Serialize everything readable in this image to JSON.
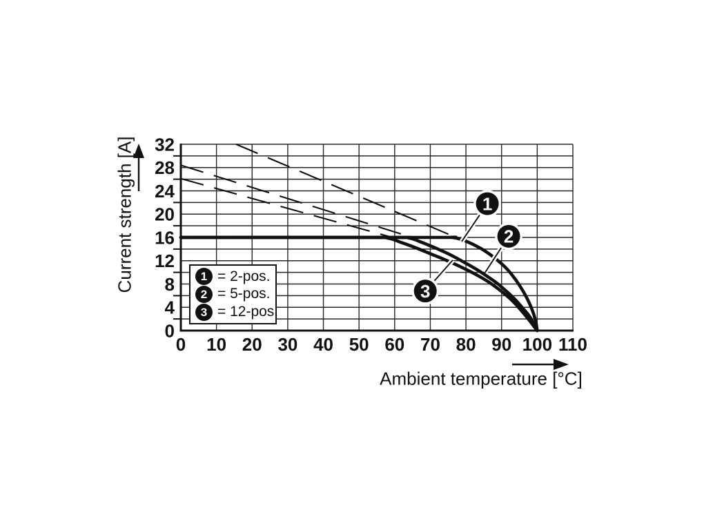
{
  "chart_data": {
    "type": "line",
    "xlabel": "Ambient temperature [°C]",
    "ylabel": "Current strength [A]",
    "xlim": [
      0,
      110
    ],
    "ylim": [
      0,
      32
    ],
    "x_ticks": [
      0,
      10,
      20,
      30,
      40,
      50,
      60,
      70,
      80,
      90,
      100,
      110
    ],
    "y_ticks": [
      0,
      4,
      8,
      12,
      16,
      20,
      24,
      28,
      32
    ],
    "x_grid_step": 10,
    "y_grid_step": 2,
    "grid": true,
    "legend_position": "inside-lower-left",
    "series": [
      {
        "id": "curve-2pos",
        "name": "1 = 2-pos.",
        "style": "solid",
        "points": [
          [
            0,
            16
          ],
          [
            70,
            16
          ],
          [
            76,
            16
          ],
          [
            79,
            15.6
          ],
          [
            82,
            14.8
          ],
          [
            85,
            13.8
          ],
          [
            88,
            12.5
          ],
          [
            91,
            10.9
          ],
          [
            93,
            9.5
          ],
          [
            95,
            7.8
          ],
          [
            97,
            5.7
          ],
          [
            98.5,
            3.7
          ],
          [
            99.5,
            1.8
          ],
          [
            100,
            0
          ]
        ]
      },
      {
        "id": "curve-5pos",
        "name": "2 = 5-pos.",
        "style": "solid",
        "points": [
          [
            0,
            16
          ],
          [
            58,
            16
          ],
          [
            64,
            15.9
          ],
          [
            67,
            15.3
          ],
          [
            71,
            14.3
          ],
          [
            75,
            13.2
          ],
          [
            79,
            11.9
          ],
          [
            83,
            10.5
          ],
          [
            86,
            9.3
          ],
          [
            89,
            8.0
          ],
          [
            92,
            6.4
          ],
          [
            94,
            5.2
          ],
          [
            96,
            3.8
          ],
          [
            98,
            2.3
          ],
          [
            100,
            0
          ]
        ]
      },
      {
        "id": "curve-12pos",
        "name": "3 = 12-pos.",
        "style": "solid",
        "points": [
          [
            0,
            16
          ],
          [
            52,
            16
          ],
          [
            58,
            15.9
          ],
          [
            62,
            15.1
          ],
          [
            66,
            14.2
          ],
          [
            70,
            13.2
          ],
          [
            74,
            12.2
          ],
          [
            78,
            11.1
          ],
          [
            82,
            9.9
          ],
          [
            86,
            8.5
          ],
          [
            89,
            7.2
          ],
          [
            92,
            5.7
          ],
          [
            94,
            4.5
          ],
          [
            96,
            3.1
          ],
          [
            98,
            1.6
          ],
          [
            100,
            0
          ]
        ]
      },
      {
        "id": "extrapolation-2pos",
        "name": "2-pos. linear extrapolation",
        "style": "dashed",
        "points": [
          [
            15.5,
            32
          ],
          [
            78,
            15.8
          ]
        ]
      },
      {
        "id": "extrapolation-5pos",
        "name": "5-pos. linear extrapolation",
        "style": "dashed",
        "points": [
          [
            0,
            28.4
          ],
          [
            66,
            15.8
          ]
        ]
      },
      {
        "id": "extrapolation-12pos",
        "name": "12-pos. linear extrapolation",
        "style": "dashed",
        "points": [
          [
            0,
            26.1
          ],
          [
            60.5,
            15.8
          ]
        ]
      }
    ]
  },
  "legend": {
    "items": [
      {
        "marker": "1",
        "label": "= 2-pos."
      },
      {
        "marker": "2",
        "label": "= 5-pos."
      },
      {
        "marker": "3",
        "label": "= 12-pos."
      }
    ]
  },
  "callouts": [
    {
      "label": "1",
      "badge": [
        86.0,
        21.8
      ],
      "tip": [
        78.8,
        15.3
      ]
    },
    {
      "label": "2",
      "badge": [
        92.0,
        16.2
      ],
      "tip": [
        85.4,
        10.0
      ]
    },
    {
      "label": "3",
      "badge": [
        68.6,
        6.8
      ],
      "tip": [
        76.3,
        12.1
      ]
    }
  ],
  "colors": {
    "ink": "#111111",
    "grid": "#262626",
    "background": "#ffffff",
    "badge_fill": "#111111",
    "badge_text": "#ffffff"
  }
}
